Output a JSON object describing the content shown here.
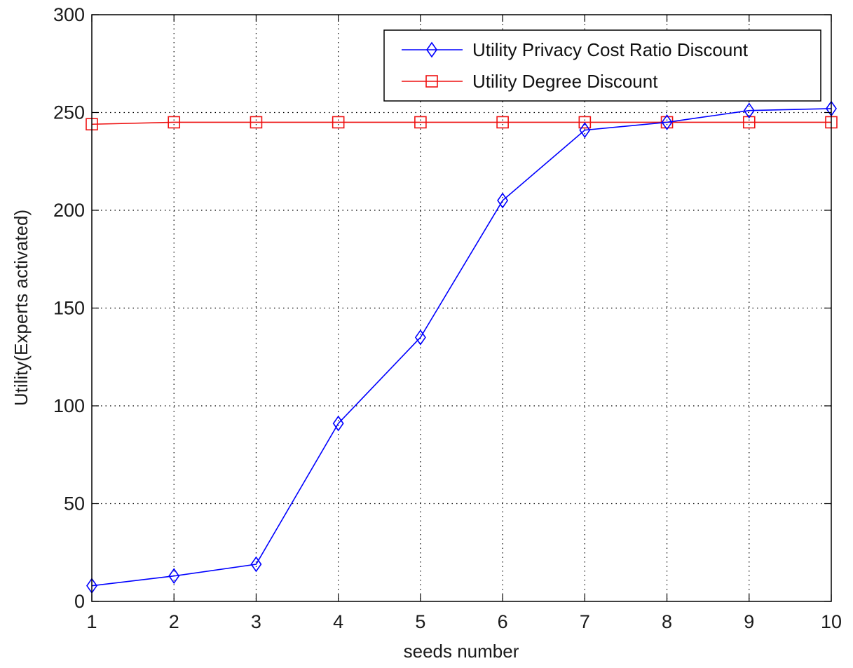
{
  "chart_data": {
    "type": "line",
    "title": "",
    "xlabel": "seeds number",
    "ylabel": "Utility(Experts activated)",
    "x": [
      1,
      2,
      3,
      4,
      5,
      6,
      7,
      8,
      9,
      10
    ],
    "xlim": [
      1,
      10
    ],
    "ylim": [
      0,
      300
    ],
    "xticks": [
      "1",
      "2",
      "3",
      "4",
      "5",
      "6",
      "7",
      "8",
      "9",
      "10"
    ],
    "yticks": [
      "0",
      "50",
      "100",
      "150",
      "200",
      "250",
      "300"
    ],
    "grid": true,
    "legend_position": "top-right",
    "series": [
      {
        "name": "Utility Privacy Cost Ratio Discount",
        "color": "#0000ff",
        "marker": "diamond",
        "values": [
          8,
          13,
          19,
          91,
          135,
          205,
          241,
          245,
          251,
          252
        ]
      },
      {
        "name": "Utility Degree Discount",
        "color": "#ee1111",
        "marker": "square",
        "values": [
          244,
          245,
          245,
          245,
          245,
          245,
          245,
          245,
          245,
          245
        ]
      }
    ]
  }
}
